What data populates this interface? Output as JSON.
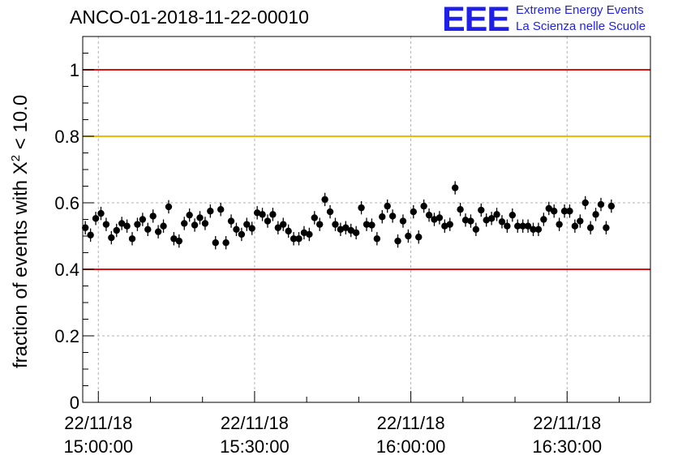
{
  "header": {
    "title": "ANCO-01-2018-11-22-00010",
    "logo_text": "EEE",
    "logo_line1": "Extreme Energy Events",
    "logo_line2": "La Scienza nelle Scuole",
    "logo_color": "#1f1fe8"
  },
  "chart_data": {
    "type": "scatter",
    "title": "ANCO-01-2018-11-22-00010",
    "ylabel_prefix": "fraction of events with ",
    "ylabel_symbol": "X",
    "ylabel_exponent": "2",
    "ylabel_suffix": " < 10.0",
    "xlabel": "",
    "xlim": [
      "22/11/18 14:57:00",
      "22/11/18 16:46:00"
    ],
    "ylim": [
      0,
      1.1
    ],
    "grid": true,
    "yticks": [
      {
        "value": 0,
        "label": "0"
      },
      {
        "value": 0.2,
        "label": "0.2"
      },
      {
        "value": 0.4,
        "label": "0.4"
      },
      {
        "value": 0.6,
        "label": "0.6"
      },
      {
        "value": 0.8,
        "label": "0.8"
      },
      {
        "value": 1.0,
        "label": "1"
      }
    ],
    "xticks": [
      {
        "minutes": 0,
        "date": "22/11/18",
        "time": "15:00:00"
      },
      {
        "minutes": 30,
        "date": "22/11/18",
        "time": "15:30:00"
      },
      {
        "minutes": 60,
        "date": "22/11/18",
        "time": "16:00:00"
      },
      {
        "minutes": 90,
        "date": "22/11/18",
        "time": "16:30:00"
      }
    ],
    "reference_lines": [
      {
        "y": 1.0,
        "color": "#e01010"
      },
      {
        "y": 0.8,
        "color": "#f5b800"
      },
      {
        "y": 0.4,
        "color": "#e01010"
      }
    ],
    "series": [
      {
        "marker_color": "#000000",
        "error": 0.02,
        "x_start": "22/11/18 14:57:30",
        "x_step_minutes": 1,
        "values": [
          0.525,
          0.503,
          0.553,
          0.568,
          0.535,
          0.495,
          0.517,
          0.538,
          0.53,
          0.492,
          0.535,
          0.55,
          0.52,
          0.56,
          0.513,
          0.53,
          0.588,
          0.492,
          0.485,
          0.538,
          0.563,
          0.533,
          0.555,
          0.538,
          0.575,
          0.48,
          0.58,
          0.48,
          0.545,
          0.52,
          0.505,
          0.535,
          0.523,
          0.57,
          0.565,
          0.545,
          0.565,
          0.525,
          0.535,
          0.515,
          0.492,
          0.492,
          0.51,
          0.505,
          0.555,
          0.535,
          0.61,
          0.573,
          0.535,
          0.52,
          0.525,
          0.517,
          0.51,
          0.585,
          0.535,
          0.533,
          0.492,
          0.558,
          0.59,
          0.56,
          0.485,
          0.545,
          0.5,
          0.573,
          0.497,
          0.59,
          0.563,
          0.55,
          0.555,
          0.53,
          0.535,
          0.645,
          0.58,
          0.548,
          0.545,
          0.52,
          0.578,
          0.548,
          0.553,
          0.565,
          0.543,
          0.53,
          0.563,
          0.53,
          0.53,
          0.53,
          0.52,
          0.52,
          0.55,
          0.583,
          0.575,
          0.535,
          0.575,
          0.575,
          0.53,
          0.545,
          0.6,
          0.525,
          0.565,
          0.595,
          0.525,
          0.59
        ]
      }
    ]
  }
}
